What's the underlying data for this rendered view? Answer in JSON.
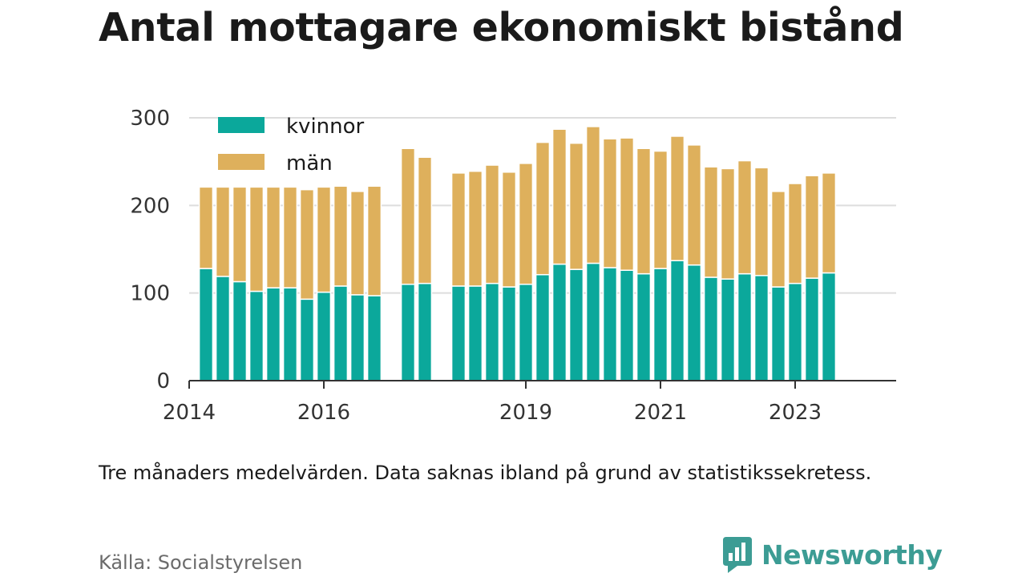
{
  "title": "Antal mottagare ekonomiskt bistånd",
  "note": "Tre månaders medelvärden. Data saknas ibland på grund av statistikssekretess.",
  "source": "Källa: Socialstyrelsen",
  "logo_text": "Newsworthy",
  "colors": {
    "kvinnor": "#0ba89b",
    "man": "#deb05c",
    "grid": "#dddddd",
    "axis": "#333333",
    "logo": "#3c9c94"
  },
  "chart_data": {
    "type": "bar",
    "stacked": true,
    "legend_position": "top-left",
    "ylim": [
      0,
      300
    ],
    "yticks": [
      0,
      100,
      200,
      300
    ],
    "xlim": [
      2014,
      2024.5
    ],
    "xticks": [
      2014,
      2016,
      2019,
      2021,
      2023
    ],
    "x": [
      2014.25,
      2014.5,
      2014.75,
      2015.0,
      2015.25,
      2015.5,
      2015.75,
      2016.0,
      2016.25,
      2016.5,
      2016.75,
      2017.25,
      2017.5,
      2018.0,
      2018.25,
      2018.5,
      2018.75,
      2019.0,
      2019.25,
      2019.5,
      2019.75,
      2020.0,
      2020.25,
      2020.5,
      2020.75,
      2021.0,
      2021.25,
      2021.5,
      2021.75,
      2022.0,
      2022.25,
      2022.5,
      2022.75,
      2023.0,
      2023.25,
      2023.5
    ],
    "series": [
      {
        "name": "kvinnor",
        "values": [
          128,
          119,
          113,
          102,
          106,
          106,
          93,
          101,
          108,
          98,
          97,
          110,
          111,
          108,
          108,
          111,
          107,
          110,
          121,
          133,
          127,
          134,
          129,
          126,
          122,
          128,
          137,
          132,
          118,
          116,
          122,
          120,
          107,
          111,
          117,
          123
        ]
      },
      {
        "name": "män",
        "values": [
          93,
          102,
          108,
          119,
          115,
          115,
          125,
          120,
          114,
          118,
          125,
          155,
          144,
          129,
          131,
          135,
          131,
          138,
          151,
          154,
          144,
          156,
          147,
          151,
          143,
          134,
          142,
          137,
          126,
          126,
          129,
          123,
          109,
          114,
          117,
          114
        ]
      }
    ]
  }
}
